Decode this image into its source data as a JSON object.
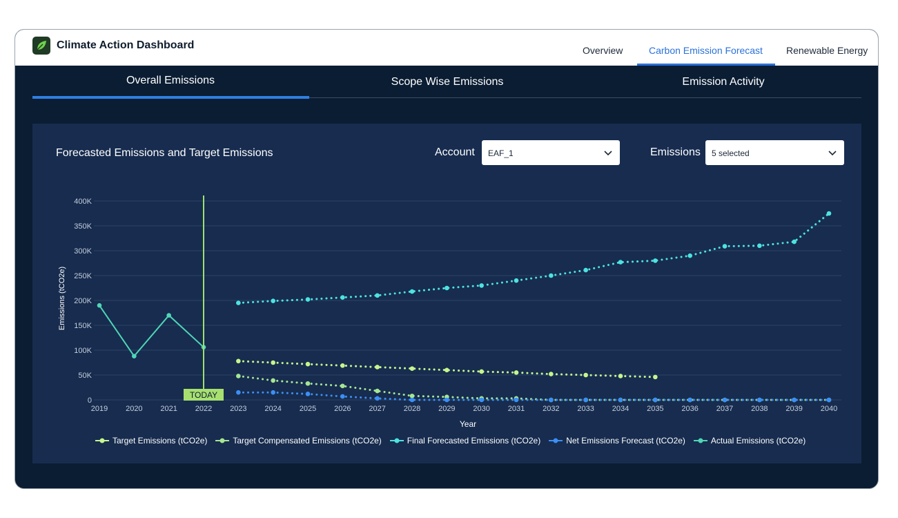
{
  "app": {
    "title": "Climate Action Dashboard"
  },
  "nav": {
    "tabs": [
      {
        "label": "Overview"
      },
      {
        "label": "Carbon Emission Forecast",
        "active": true
      },
      {
        "label": "Renewable Energy"
      }
    ]
  },
  "subtabs": [
    {
      "label": "Overall Emissions",
      "active": true
    },
    {
      "label": "Scope Wise Emissions"
    },
    {
      "label": "Emission Activity"
    }
  ],
  "panel": {
    "title": "Forecasted Emissions and Target Emissions",
    "filters": {
      "account": {
        "label": "Account",
        "value": "EAF_1"
      },
      "emissions": {
        "label": "Emissions",
        "value": "5 selected"
      }
    }
  },
  "icons": {
    "logo": "leaf-icon",
    "dropdown": "chevron-down-icon"
  },
  "colors": {
    "accent": "#2a72d8",
    "target": "#c6f68d",
    "target_compensated": "#a6e693",
    "final_forecast": "#4de3e0",
    "net_forecast": "#3b8ff5",
    "actual": "#4fd6b6"
  },
  "chart_data": {
    "type": "line",
    "xlabel": "Year",
    "ylabel": "Emissions (tCO2e)",
    "x": [
      2019,
      2020,
      2021,
      2022,
      2023,
      2024,
      2025,
      2026,
      2027,
      2028,
      2029,
      2030,
      2031,
      2032,
      2033,
      2034,
      2035,
      2036,
      2037,
      2038,
      2039,
      2040
    ],
    "x_ticks": [
      "2019",
      "2020",
      "2021",
      "2022",
      "2023",
      "2024",
      "2025",
      "2026",
      "2027",
      "2028",
      "2029",
      "2030",
      "2031",
      "2032",
      "2033",
      "2034",
      "2035",
      "2036",
      "2037",
      "2038",
      "2039",
      "2040"
    ],
    "ylim": [
      0,
      400000
    ],
    "y_ticks": [
      0,
      50000,
      100000,
      150000,
      200000,
      250000,
      300000,
      350000,
      400000
    ],
    "y_tick_labels": [
      "0",
      "50K",
      "100K",
      "150K",
      "200K",
      "250K",
      "300K",
      "350K",
      "400K"
    ],
    "grid": true,
    "legend_position": "bottom",
    "today_marker": {
      "x": 2022,
      "label": "TODAY"
    },
    "series": [
      {
        "name": "Target Emissions (tCO2e)",
        "style": "dotted",
        "color": "#c6f68d",
        "x": [
          2023,
          2024,
          2025,
          2026,
          2027,
          2028,
          2029,
          2030,
          2031,
          2032,
          2033,
          2034,
          2035
        ],
        "values": [
          78000,
          75000,
          72000,
          69000,
          66000,
          63000,
          60000,
          57000,
          55000,
          52000,
          50000,
          48000,
          46000
        ]
      },
      {
        "name": "Target Compensated Emissions (tCO2e)",
        "style": "dotted",
        "color": "#a6e693",
        "x": [
          2023,
          2024,
          2025,
          2026,
          2027,
          2028,
          2029,
          2030,
          2031,
          2032,
          2033,
          2034,
          2035,
          2036,
          2037,
          2038,
          2039,
          2040
        ],
        "values": [
          48000,
          39000,
          33000,
          28000,
          18000,
          8000,
          6000,
          3000,
          3000,
          0,
          0,
          0,
          0,
          0,
          0,
          0,
          0,
          0
        ]
      },
      {
        "name": "Final Forecasted Emissions (tCO2e)",
        "style": "dotted",
        "color": "#4de3e0",
        "x": [
          2023,
          2024,
          2025,
          2026,
          2027,
          2028,
          2029,
          2030,
          2031,
          2032,
          2033,
          2034,
          2035,
          2036,
          2037,
          2038,
          2039,
          2040
        ],
        "values": [
          195000,
          199000,
          202000,
          206000,
          210000,
          218000,
          225000,
          230000,
          240000,
          250000,
          261000,
          277000,
          280000,
          290000,
          309000,
          310000,
          318000,
          375000
        ]
      },
      {
        "name": "Net Emissions Forecast (tCO2e)",
        "style": "dotted",
        "color": "#3b8ff5",
        "x": [
          2023,
          2024,
          2025,
          2026,
          2027,
          2028,
          2029,
          2030,
          2031,
          2032,
          2033,
          2034,
          2035,
          2036,
          2037,
          2038,
          2039,
          2040
        ],
        "values": [
          15000,
          15000,
          12000,
          7000,
          3000,
          0,
          0,
          0,
          0,
          0,
          0,
          0,
          0,
          0,
          0,
          0,
          0,
          0
        ]
      },
      {
        "name": "Actual Emissions (tCO2e)",
        "style": "solid",
        "color": "#4fd6b6",
        "x": [
          2019,
          2020,
          2021,
          2022
        ],
        "values": [
          190000,
          88000,
          170000,
          106000
        ]
      }
    ]
  }
}
